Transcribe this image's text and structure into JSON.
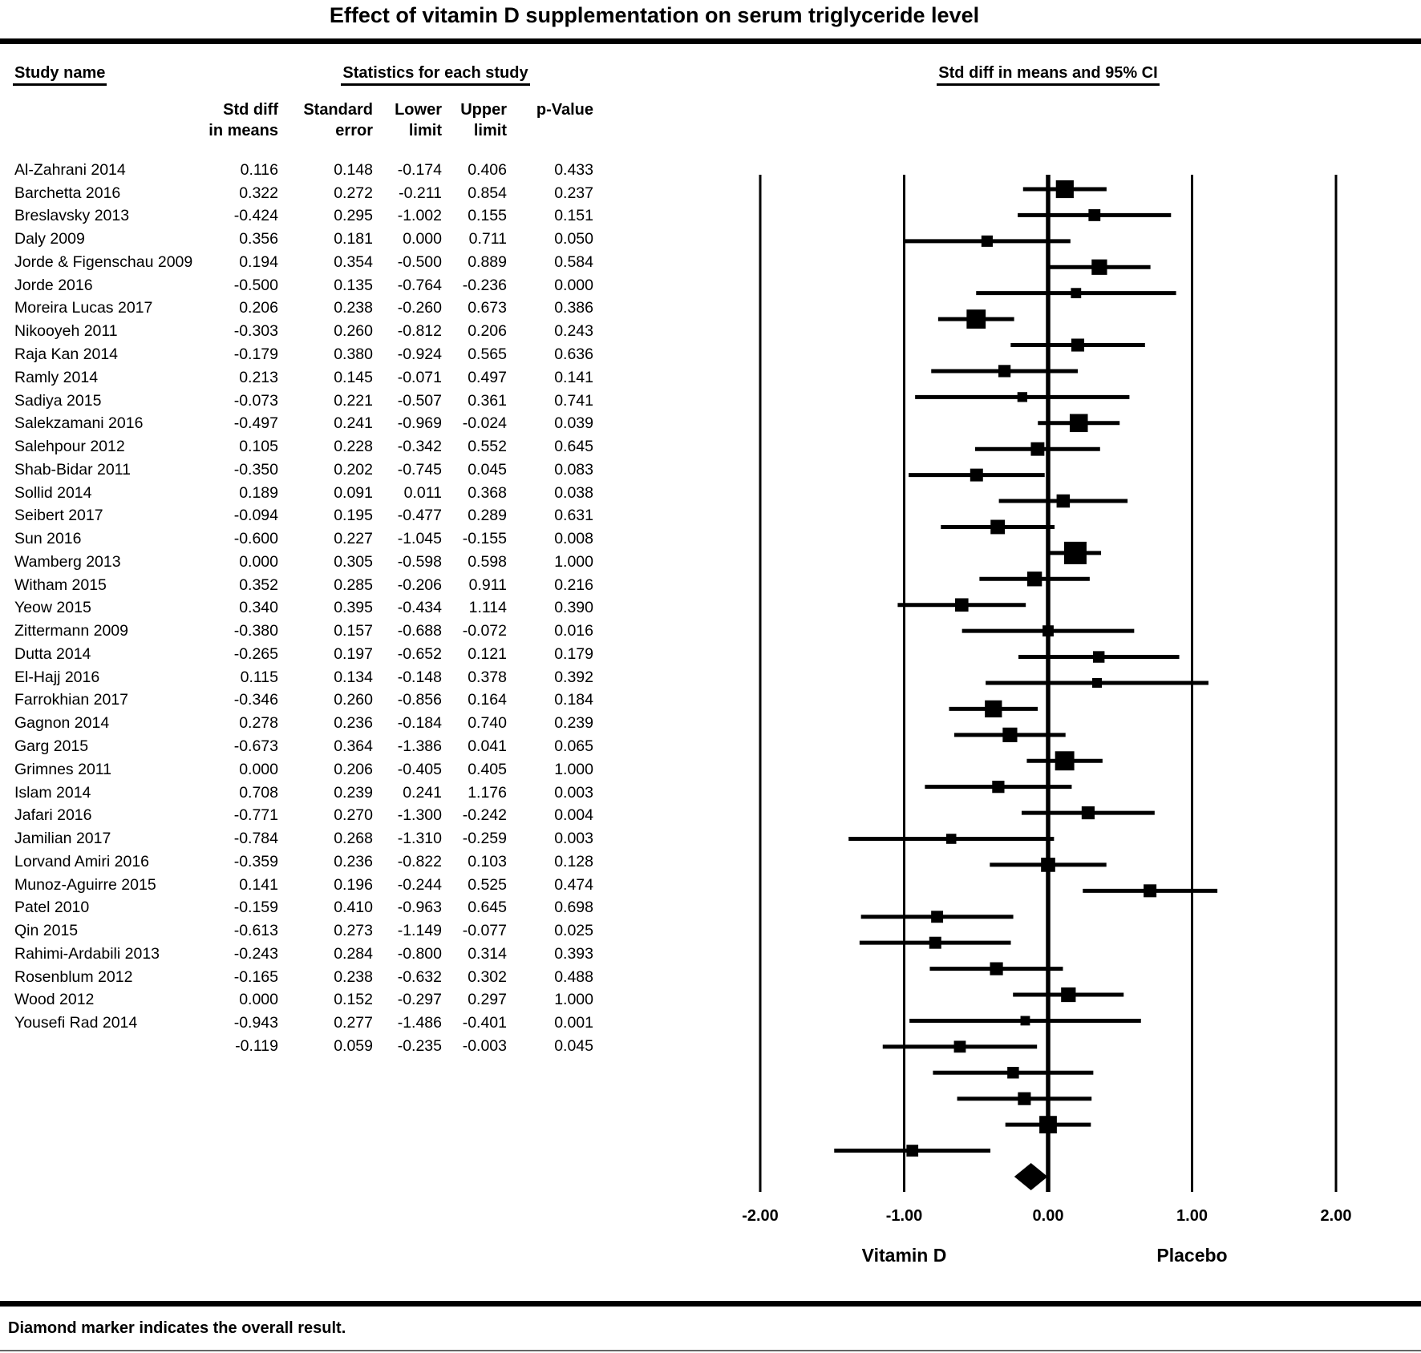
{
  "title": "Effect of vitamin D supplementation on serum triglyceride level",
  "table": {
    "study_col_header": "Study name",
    "stats_group_header": "Statistics for each study",
    "columns": [
      {
        "line1": "Std diff",
        "line2": "in means"
      },
      {
        "line1": "Standard",
        "line2": "error"
      },
      {
        "line1": "Lower",
        "line2": "limit"
      },
      {
        "line1": "Upper",
        "line2": "limit"
      },
      {
        "line1": "",
        "line2": "p-Value"
      }
    ]
  },
  "plot": {
    "header": "Std diff in means and 95% CI"
  },
  "footnote": "Diamond marker indicates the overall result.",
  "colors": {
    "ink": "#000000",
    "background": "#ffffff"
  },
  "chart_data": {
    "type": "forest",
    "title": "Effect of vitamin D supplementation on serum triglyceride level",
    "x_axis": {
      "range": [
        -2,
        2
      ],
      "tick_values": [
        -2,
        -1,
        0,
        1,
        2
      ],
      "tick_labels": [
        "-2.00",
        "-1.00",
        "0.00",
        "1.00",
        "2.00"
      ],
      "left_group_label": "Vitamin D",
      "right_group_label": "Placebo"
    },
    "studies": [
      {
        "name": "Al-Zahrani 2014",
        "std_diff": "0.116",
        "se": "0.148",
        "lower": "-0.174",
        "upper": "0.406",
        "p": "0.433"
      },
      {
        "name": "Barchetta 2016",
        "std_diff": "0.322",
        "se": "0.272",
        "lower": "-0.211",
        "upper": "0.854",
        "p": "0.237"
      },
      {
        "name": "Breslavsky 2013",
        "std_diff": "-0.424",
        "se": "0.295",
        "lower": "-1.002",
        "upper": "0.155",
        "p": "0.151"
      },
      {
        "name": "Daly 2009",
        "std_diff": "0.356",
        "se": "0.181",
        "lower": "0.000",
        "upper": "0.711",
        "p": "0.050"
      },
      {
        "name": "Jorde & Figenschau 2009",
        "std_diff": "0.194",
        "se": "0.354",
        "lower": "-0.500",
        "upper": "0.889",
        "p": "0.584"
      },
      {
        "name": "Jorde 2016",
        "std_diff": "-0.500",
        "se": "0.135",
        "lower": "-0.764",
        "upper": "-0.236",
        "p": "0.000"
      },
      {
        "name": "Moreira Lucas 2017",
        "std_diff": "0.206",
        "se": "0.238",
        "lower": "-0.260",
        "upper": "0.673",
        "p": "0.386"
      },
      {
        "name": "Nikooyeh 2011",
        "std_diff": "-0.303",
        "se": "0.260",
        "lower": "-0.812",
        "upper": "0.206",
        "p": "0.243"
      },
      {
        "name": "Raja Kan 2014",
        "std_diff": "-0.179",
        "se": "0.380",
        "lower": "-0.924",
        "upper": "0.565",
        "p": "0.636"
      },
      {
        "name": "Ramly 2014",
        "std_diff": "0.213",
        "se": "0.145",
        "lower": "-0.071",
        "upper": "0.497",
        "p": "0.141"
      },
      {
        "name": "Sadiya 2015",
        "std_diff": "-0.073",
        "se": "0.221",
        "lower": "-0.507",
        "upper": "0.361",
        "p": "0.741"
      },
      {
        "name": "Salekzamani 2016",
        "std_diff": "-0.497",
        "se": "0.241",
        "lower": "-0.969",
        "upper": "-0.024",
        "p": "0.039"
      },
      {
        "name": "Salehpour 2012",
        "std_diff": "0.105",
        "se": "0.228",
        "lower": "-0.342",
        "upper": "0.552",
        "p": "0.645"
      },
      {
        "name": "Shab-Bidar 2011",
        "std_diff": "-0.350",
        "se": "0.202",
        "lower": "-0.745",
        "upper": "0.045",
        "p": "0.083"
      },
      {
        "name": "Sollid 2014",
        "std_diff": "0.189",
        "se": "0.091",
        "lower": "0.011",
        "upper": "0.368",
        "p": "0.038"
      },
      {
        "name": "Seibert 2017",
        "std_diff": "-0.094",
        "se": "0.195",
        "lower": "-0.477",
        "upper": "0.289",
        "p": "0.631"
      },
      {
        "name": "Sun 2016",
        "std_diff": "-0.600",
        "se": "0.227",
        "lower": "-1.045",
        "upper": "-0.155",
        "p": "0.008"
      },
      {
        "name": "Wamberg 2013",
        "std_diff": "0.000",
        "se": "0.305",
        "lower": "-0.598",
        "upper": "0.598",
        "p": "1.000"
      },
      {
        "name": "Witham 2015",
        "std_diff": "0.352",
        "se": "0.285",
        "lower": "-0.206",
        "upper": "0.911",
        "p": "0.216"
      },
      {
        "name": "Yeow 2015",
        "std_diff": "0.340",
        "se": "0.395",
        "lower": "-0.434",
        "upper": "1.114",
        "p": "0.390"
      },
      {
        "name": "Zittermann 2009",
        "std_diff": "-0.380",
        "se": "0.157",
        "lower": "-0.688",
        "upper": "-0.072",
        "p": "0.016"
      },
      {
        "name": "Dutta 2014",
        "std_diff": "-0.265",
        "se": "0.197",
        "lower": "-0.652",
        "upper": "0.121",
        "p": "0.179"
      },
      {
        "name": "El-Hajj 2016",
        "std_diff": "0.115",
        "se": "0.134",
        "lower": "-0.148",
        "upper": "0.378",
        "p": "0.392"
      },
      {
        "name": "Farrokhian 2017",
        "std_diff": "-0.346",
        "se": "0.260",
        "lower": "-0.856",
        "upper": "0.164",
        "p": "0.184"
      },
      {
        "name": "Gagnon 2014",
        "std_diff": "0.278",
        "se": "0.236",
        "lower": "-0.184",
        "upper": "0.740",
        "p": "0.239"
      },
      {
        "name": "Garg 2015",
        "std_diff": "-0.673",
        "se": "0.364",
        "lower": "-1.386",
        "upper": "0.041",
        "p": "0.065"
      },
      {
        "name": "Grimnes 2011",
        "std_diff": "0.000",
        "se": "0.206",
        "lower": "-0.405",
        "upper": "0.405",
        "p": "1.000"
      },
      {
        "name": "Islam 2014",
        "std_diff": "0.708",
        "se": "0.239",
        "lower": "0.241",
        "upper": "1.176",
        "p": "0.003"
      },
      {
        "name": "Jafari 2016",
        "std_diff": "-0.771",
        "se": "0.270",
        "lower": "-1.300",
        "upper": "-0.242",
        "p": "0.004"
      },
      {
        "name": "Jamilian 2017",
        "std_diff": "-0.784",
        "se": "0.268",
        "lower": "-1.310",
        "upper": "-0.259",
        "p": "0.003"
      },
      {
        "name": "Lorvand Amiri 2016",
        "std_diff": "-0.359",
        "se": "0.236",
        "lower": "-0.822",
        "upper": "0.103",
        "p": "0.128"
      },
      {
        "name": "Munoz-Aguirre 2015",
        "std_diff": "0.141",
        "se": "0.196",
        "lower": "-0.244",
        "upper": "0.525",
        "p": "0.474"
      },
      {
        "name": "Patel 2010",
        "std_diff": "-0.159",
        "se": "0.410",
        "lower": "-0.963",
        "upper": "0.645",
        "p": "0.698"
      },
      {
        "name": "Qin 2015",
        "std_diff": "-0.613",
        "se": "0.273",
        "lower": "-1.149",
        "upper": "-0.077",
        "p": "0.025"
      },
      {
        "name": "Rahimi-Ardabili 2013",
        "std_diff": "-0.243",
        "se": "0.284",
        "lower": "-0.800",
        "upper": "0.314",
        "p": "0.393"
      },
      {
        "name": "Rosenblum 2012",
        "std_diff": "-0.165",
        "se": "0.238",
        "lower": "-0.632",
        "upper": "0.302",
        "p": "0.488"
      },
      {
        "name": "Wood 2012",
        "std_diff": "0.000",
        "se": "0.152",
        "lower": "-0.297",
        "upper": "0.297",
        "p": "1.000"
      },
      {
        "name": "Yousefi Rad 2014",
        "std_diff": "-0.943",
        "se": "0.277",
        "lower": "-1.486",
        "upper": "-0.401",
        "p": "0.001"
      }
    ],
    "overall": {
      "name": "",
      "std_diff": "-0.119",
      "se": "0.059",
      "lower": "-0.235",
      "upper": "-0.003",
      "p": "0.045"
    }
  }
}
